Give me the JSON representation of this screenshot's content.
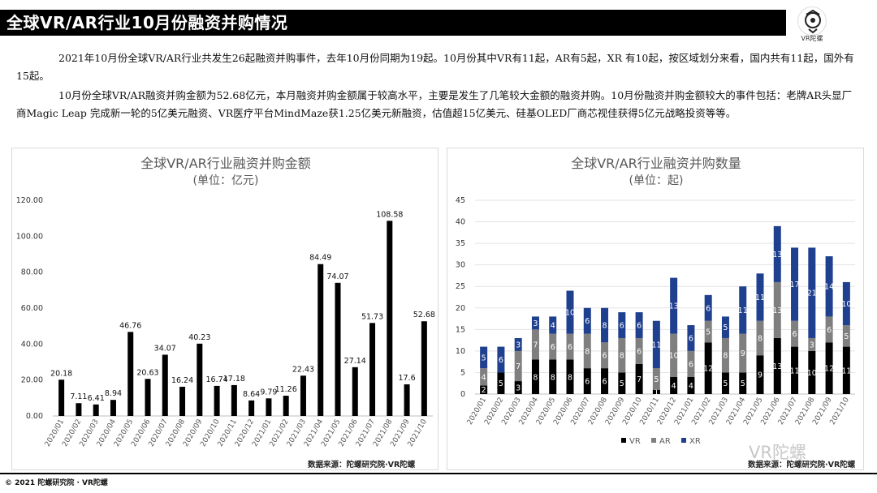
{
  "header": {
    "title": "全球VR/AR行业10月份融资并购情况",
    "logo_text": "VR陀螺"
  },
  "body": {
    "paragraph1": "2021年10月份全球VR/AR行业共发生26起融资并购事件，去年10月份同期为19起。10月份其中VR有11起，AR有5起，XR 有10起，按区域划分来看，国内共有11起，国外有15起。",
    "paragraph2": "10月份全球VR/AR融资并购金额为52.68亿元，本月融资并购金额属于较高水平，主要是发生了几笔较大金额的融资并购。10月份融资并购金额较大的事件包括：老牌AR头显厂商Magic Leap 完成新一轮的5亿美元融资、VR医疗平台MindMaze获1.25亿美元新融资，估值超15亿美元、硅基OLED厂商芯视佳获得5亿元战略投资等等。"
  },
  "chart_data": [
    {
      "type": "bar",
      "title": "全球VR/AR行业融资并购金额",
      "subtitle": "(单位：亿元)",
      "categories": [
        "2020/01",
        "2020/02",
        "2020/03",
        "2020/04",
        "2020/05",
        "2020/06",
        "2020/07",
        "2020/08",
        "2020/09",
        "2020/10",
        "2020/11",
        "2020/12",
        "2021/01",
        "2021/02",
        "2021/03",
        "2021/04",
        "2021/05",
        "2021/06",
        "2021/07",
        "2021/08",
        "2021/09",
        "2021/10"
      ],
      "values": [
        20.18,
        7.11,
        6.41,
        8.94,
        46.76,
        20.63,
        34.07,
        16.24,
        40.23,
        16.74,
        17.18,
        8.64,
        9.79,
        11.26,
        22.43,
        84.49,
        74.07,
        27.14,
        51.73,
        108.58,
        17.6,
        52.68
      ],
      "value_labels": [
        "20.18",
        "7.11",
        "6.41",
        "8.94",
        "46.76",
        "20.63",
        "34.07",
        "16.24",
        "40.23",
        "16.74",
        "17.18",
        "8.64",
        "9.79",
        "11.26",
        "22.43",
        "84.49",
        "74.07",
        "27.14",
        "51.73",
        "108.58",
        "17.6",
        "52.68"
      ],
      "ylim": [
        0,
        120
      ],
      "yticks": [
        "0.00",
        "20.00",
        "40.00",
        "60.00",
        "80.00",
        "100.00",
        "120.00"
      ],
      "grid": false,
      "color": "#000000",
      "source": "数据来源：陀螺研究院·VR陀螺"
    },
    {
      "type": "bar",
      "stacked": true,
      "title": "全球VR/AR行业融资并购数量",
      "subtitle": "(单位：起)",
      "categories": [
        "2020/01",
        "2020/02",
        "2020/03",
        "2020/04",
        "2020/05",
        "2020/06",
        "2020/07",
        "2020/08",
        "2020/09",
        "2020/10",
        "2020/11",
        "2020/12",
        "2021/01",
        "2021/02",
        "2021/03",
        "2021/04",
        "2021/05",
        "2021/06",
        "2021/07",
        "2021/08",
        "2021/09",
        "2021/10"
      ],
      "series": [
        {
          "name": "VR",
          "color": "#000000",
          "values": [
            2,
            5,
            3,
            8,
            8,
            8,
            6,
            6,
            5,
            7,
            1,
            4,
            4,
            12,
            5,
            5,
            9,
            13,
            11,
            10,
            12,
            11
          ]
        },
        {
          "name": "AR",
          "color": "#7f7f7f",
          "values": [
            4,
            0,
            7,
            7,
            6,
            6,
            8,
            6,
            8,
            6,
            5,
            10,
            6,
            5,
            8,
            9,
            8,
            13,
            6,
            3,
            6,
            5
          ]
        },
        {
          "name": "XR",
          "color": "#1f3f8f",
          "values": [
            5,
            6,
            3,
            3,
            4,
            10,
            6,
            8,
            6,
            6,
            11,
            13,
            6,
            6,
            5,
            11,
            11,
            13,
            17,
            21,
            14,
            10
          ]
        }
      ],
      "ylim": [
        0,
        45
      ],
      "yticks": [
        "0",
        "5",
        "10",
        "15",
        "20",
        "25",
        "30",
        "35",
        "40",
        "45"
      ],
      "grid": true,
      "legend": "bottom",
      "source": "数据来源：陀螺研究院·VR陀螺"
    }
  ],
  "footer": {
    "copyright": "© 2021 陀螺研究院 · VR陀螺",
    "watermark": "VR陀螺"
  }
}
